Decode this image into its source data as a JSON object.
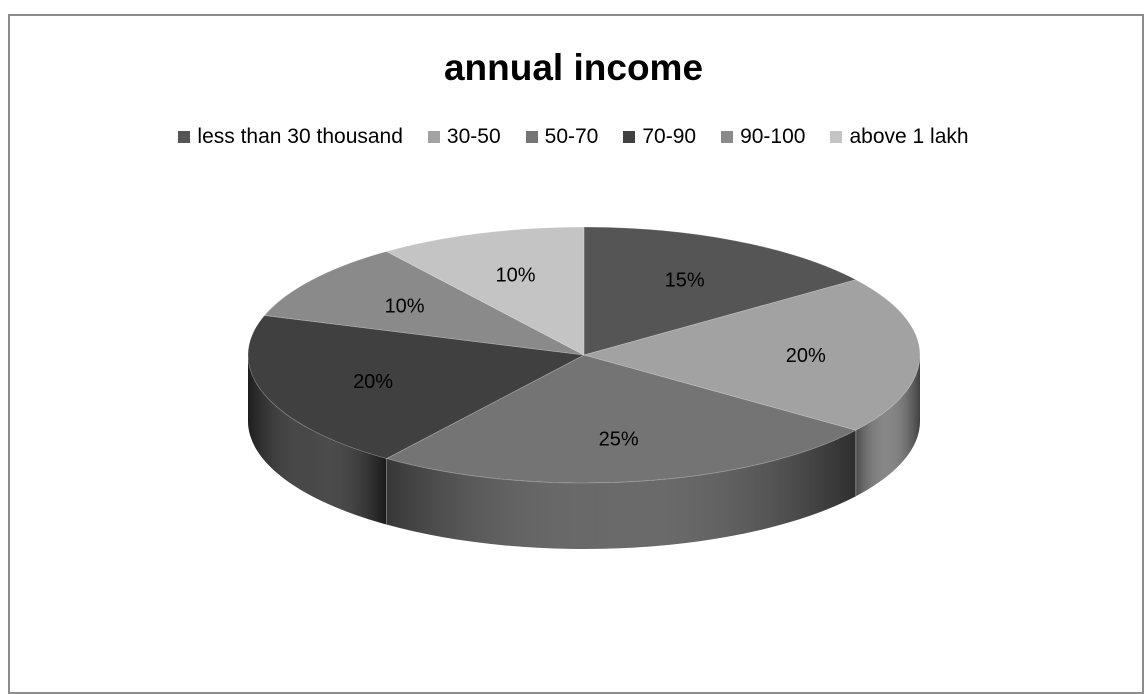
{
  "chart_data": {
    "type": "pie",
    "title": "annual income",
    "categories": [
      "less than 30 thousand",
      "30-50",
      "50-70",
      "70-90",
      "90-100",
      "above 1 lakh"
    ],
    "values": [
      15,
      20,
      25,
      20,
      10,
      10
    ],
    "data_labels": [
      "15%",
      "20%",
      "25%",
      "20%",
      "10%",
      "10%"
    ],
    "colors": [
      "#555555",
      "#a2a2a2",
      "#747474",
      "#404040",
      "#8a8a8a",
      "#c4c4c4"
    ],
    "legend": {
      "position": "top",
      "entries": [
        "less than 30 thousand",
        "30-50",
        "50-70",
        "70-90",
        "90-100",
        "above 1 lakh"
      ]
    },
    "style": "3d"
  }
}
